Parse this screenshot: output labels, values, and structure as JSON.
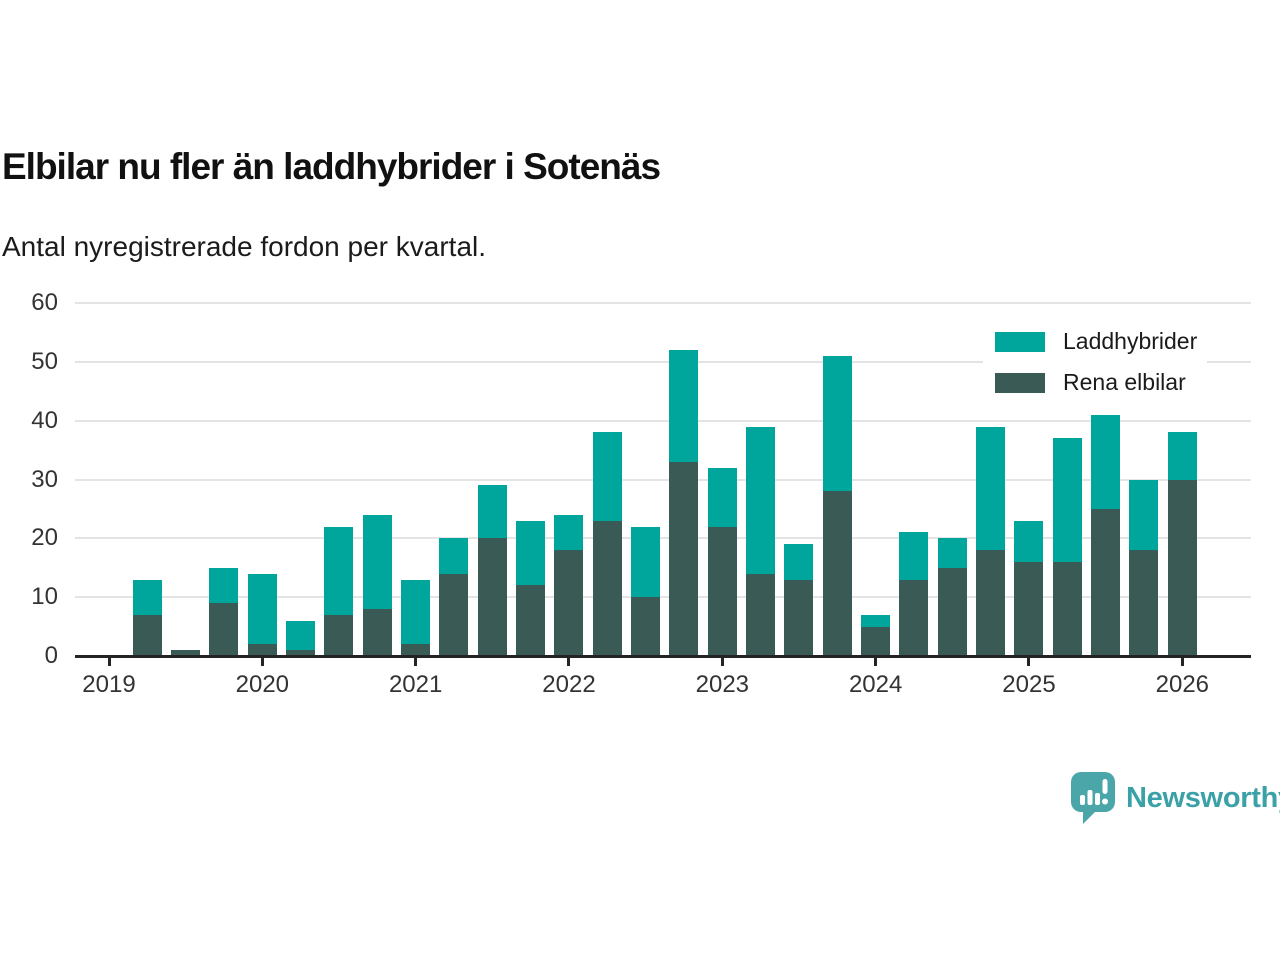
{
  "title": "Elbilar nu fler än laddhybrider i Sotenäs",
  "subtitle": "Antal nyregistrerade fordon per kvartal.",
  "legend": {
    "items": [
      {
        "label": "Laddhybrider",
        "color": "#00a69c"
      },
      {
        "label": "Rena elbilar",
        "color": "#3a5b55"
      }
    ]
  },
  "branding": {
    "name": "Newsworthy",
    "text_color": "#3aa1a7",
    "logo_color": "#4ba6a9",
    "logo_icon": "bar-chart-speech-bubble"
  },
  "chart_data": {
    "type": "bar",
    "stacked": true,
    "title": "Elbilar nu fler än laddhybrider i Sotenäs",
    "subtitle": "Antal nyregistrerade fordon per kvartal.",
    "xlabel": "",
    "ylabel": "",
    "ylim": [
      0,
      60
    ],
    "yticks": [
      0,
      10,
      20,
      30,
      40,
      50,
      60
    ],
    "grid": "horizontal",
    "legend_position": "top-right",
    "x_tick_labels": [
      "2019",
      "2020",
      "2021",
      "2022",
      "2023",
      "2024",
      "2025",
      "2026"
    ],
    "categories": [
      "2019-Q1",
      "2019-Q2",
      "2019-Q3",
      "2019-Q4",
      "2020-Q1",
      "2020-Q2",
      "2020-Q3",
      "2020-Q4",
      "2021-Q1",
      "2021-Q2",
      "2021-Q3",
      "2021-Q4",
      "2022-Q1",
      "2022-Q2",
      "2022-Q3",
      "2022-Q4",
      "2023-Q1",
      "2023-Q2",
      "2023-Q3",
      "2023-Q4",
      "2024-Q1",
      "2024-Q2",
      "2024-Q3",
      "2024-Q4",
      "2025-Q1",
      "2025-Q2",
      "2025-Q3",
      "2025-Q4",
      "2026-Q1"
    ],
    "series": [
      {
        "name": "Rena elbilar",
        "color": "#3a5b55",
        "values": [
          0,
          7,
          1,
          9,
          2,
          1,
          7,
          8,
          2,
          14,
          20,
          12,
          18,
          23,
          10,
          33,
          22,
          14,
          13,
          28,
          5,
          13,
          15,
          18,
          16,
          16,
          25,
          18,
          30
        ]
      },
      {
        "name": "Laddhybrider",
        "color": "#00a69c",
        "values": [
          0,
          6,
          0,
          6,
          12,
          5,
          15,
          16,
          11,
          6,
          9,
          11,
          6,
          15,
          12,
          19,
          10,
          25,
          6,
          23,
          2,
          8,
          5,
          21,
          7,
          21,
          16,
          12,
          8
        ]
      }
    ],
    "totals": [
      0,
      13,
      1,
      15,
      14,
      6,
      22,
      24,
      13,
      20,
      29,
      23,
      24,
      38,
      22,
      52,
      32,
      39,
      19,
      51,
      7,
      21,
      20,
      39,
      23,
      37,
      41,
      30,
      38
    ]
  }
}
